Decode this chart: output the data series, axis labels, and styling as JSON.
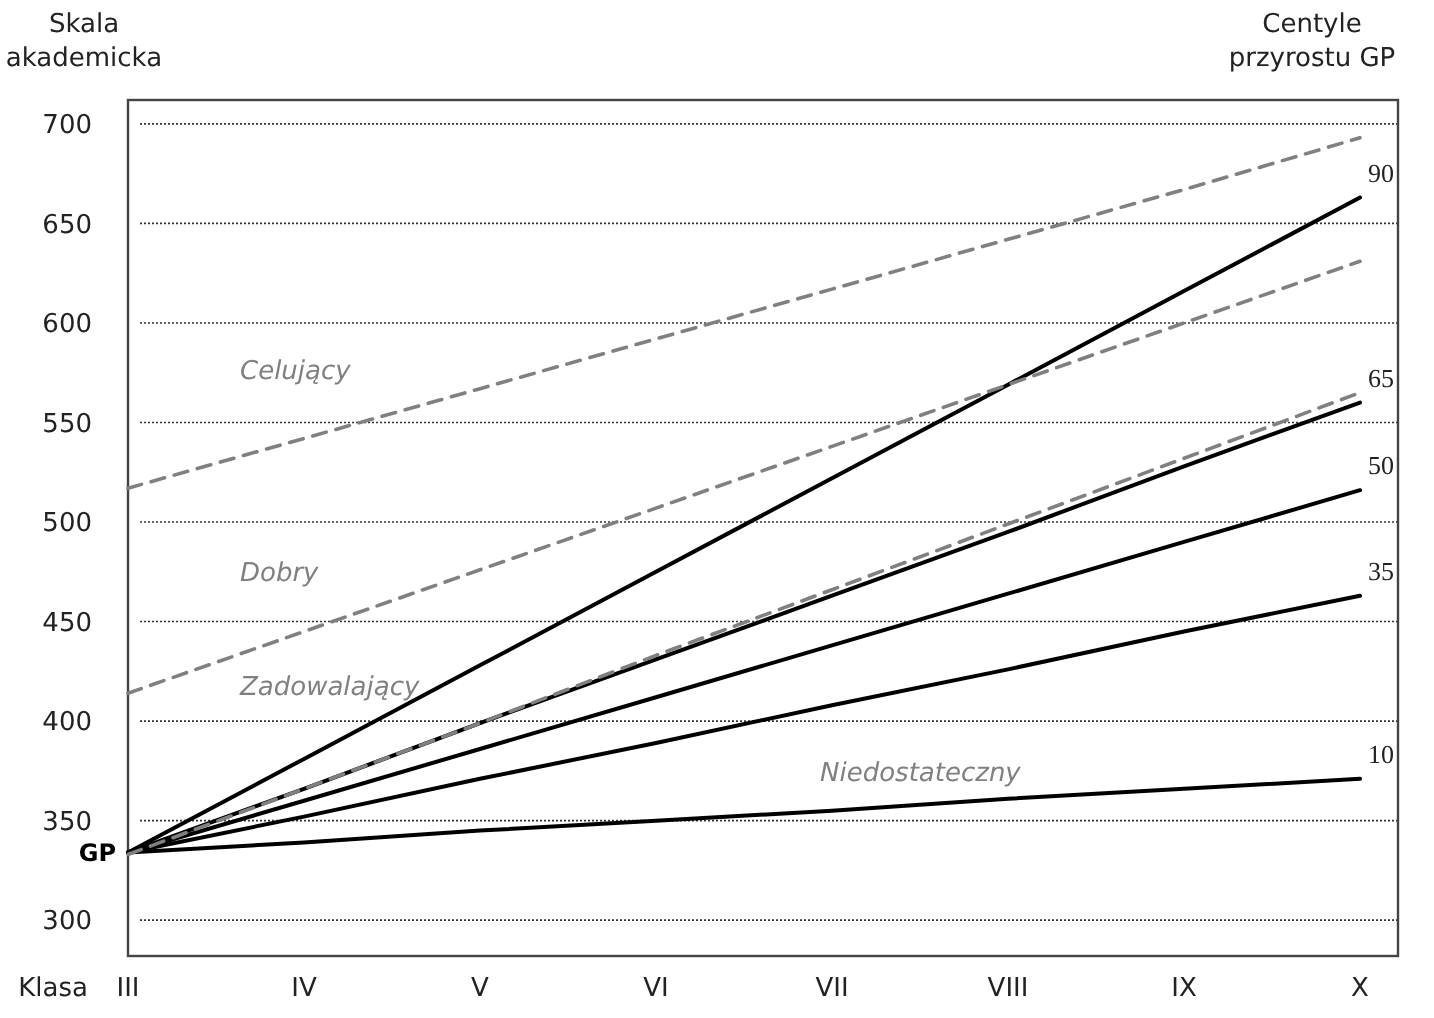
{
  "chart_data": {
    "type": "line",
    "ylabel": "Skala akademicka",
    "xlabel": "Klasa",
    "legend_title": "Centyle przyrostu GP",
    "categories": [
      "III",
      "IV",
      "V",
      "VI",
      "VII",
      "VIII",
      "IX",
      "X"
    ],
    "ylim": [
      282,
      712
    ],
    "yticks": [
      300,
      350,
      400,
      450,
      500,
      550,
      600,
      650,
      700
    ],
    "grid": "y",
    "line_style": "solid",
    "series": [
      {
        "name": "90",
        "color": "#000000",
        "values": [
          334,
          381,
          428,
          475,
          522,
          569,
          616,
          663
        ]
      },
      {
        "name": "65",
        "color": "#000000",
        "values": [
          334,
          366,
          399,
          431,
          463,
          495,
          528,
          560
        ]
      },
      {
        "name": "50",
        "color": "#000000",
        "values": [
          334,
          360,
          386,
          412,
          438,
          464,
          490,
          516
        ]
      },
      {
        "name": "35",
        "color": "#000000",
        "values": [
          334,
          352,
          371,
          389,
          408,
          426,
          445,
          463
        ]
      },
      {
        "name": "10",
        "color": "#000000",
        "values": [
          334,
          339,
          345,
          350,
          355,
          361,
          366,
          371
        ]
      },
      {
        "color": "#808080",
        "line_style": "dashed",
        "values": [
          517,
          542,
          567,
          592,
          617,
          642,
          667,
          693
        ]
      },
      {
        "color": "#808080",
        "line_style": "dashed",
        "values": [
          414,
          445,
          476,
          507,
          538,
          569,
          600,
          631
        ]
      },
      {
        "color": "#808080",
        "line_style": "dashed",
        "values": [
          333,
          366,
          399,
          433,
          466,
          499,
          532,
          565
        ]
      }
    ],
    "annotations": [
      "Celujący",
      "Dobry",
      "Zadowalający",
      "Niedostateczny",
      {
        "text": "GP",
        "x": "III",
        "y": 334
      }
    ]
  }
}
